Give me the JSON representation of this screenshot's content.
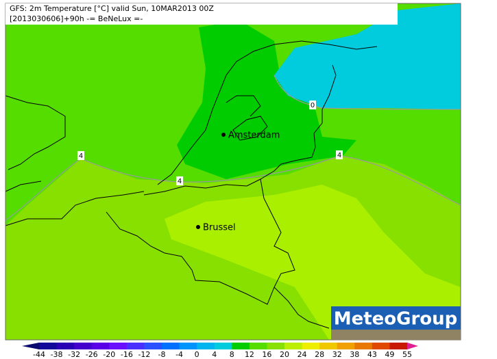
{
  "header": {
    "title": "GFS: 2m Temperature [°C] valid Sun, 10MAR2013 00Z",
    "subtitle": "[2013030606]+90h -= BeNeLux =-"
  },
  "cities": [
    "Amsterdam",
    "Brussel"
  ],
  "contour_labels": [
    "0",
    "4",
    "4",
    "4"
  ],
  "logo": "MeteoGroup",
  "colorbar": {
    "labels": [
      -44,
      -38,
      -32,
      -26,
      -20,
      -16,
      -12,
      -8,
      -4,
      0,
      4,
      8,
      12,
      16,
      20,
      24,
      28,
      32,
      38,
      43,
      49,
      55
    ],
    "colors": [
      "#0a0a6e",
      "#12089a",
      "#2a00b4",
      "#4400cc",
      "#5a00e6",
      "#6a10ff",
      "#4a30ff",
      "#2a50ff",
      "#0070ff",
      "#0094ff",
      "#00b4f0",
      "#00ccdd",
      "#00cc00",
      "#55dd00",
      "#88e000",
      "#bbee00",
      "#eeee00",
      "#f0c800",
      "#f0a000",
      "#e87800",
      "#e04800",
      "#c81800",
      "#a00000",
      "#e02090"
    ]
  }
}
